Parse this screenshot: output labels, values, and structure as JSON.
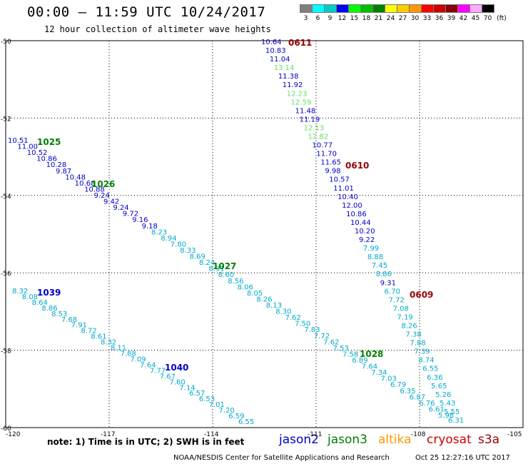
{
  "title": "00:00 – 11:59 UTC 10/24/2017",
  "subtitle": "12 hour collection of altimeter wave heights",
  "scale": {
    "labels": [
      "3",
      "6",
      "9",
      "12",
      "15",
      "18",
      "21",
      "24",
      "27",
      "30",
      "33",
      "36",
      "39",
      "42",
      "45",
      "70"
    ],
    "unit": "(ft)",
    "colors": [
      "#808080",
      "#00ffff",
      "#00cccc",
      "#0000ff",
      "#00ff00",
      "#00c000",
      "#008000",
      "#ffff00",
      "#ffcc00",
      "#ff9900",
      "#ff0000",
      "#cc0000",
      "#880000",
      "#ff00ff",
      "#ffaaff",
      "#000000"
    ]
  },
  "lat_labels": [
    "-50",
    "-52",
    "-54",
    "-56",
    "-58",
    "-60"
  ],
  "lon_labels": [
    "-120",
    "-117",
    "-114",
    "-111",
    "-108",
    "-105"
  ],
  "note": "note: 1) Time is in UTC; 2) SWH is in feet",
  "legend": [
    {
      "name": "jason2",
      "color": "#0000cc"
    },
    {
      "name": "jason3",
      "color": "#008000"
    },
    {
      "name": "altika",
      "color": "#ff9900"
    },
    {
      "name": "cryosat",
      "color": "#cc0000"
    },
    {
      "name": "s3a",
      "color": "#990000"
    }
  ],
  "footer_left": "NOAA/NESDIS Center for Satellite Applications and Research",
  "footer_right": "Oct 25 12:27:16 UTC 2017",
  "tracks": [
    {
      "id": "A",
      "satellite": "cryosat",
      "time_labels": [
        {
          "text": "0611",
          "color": "#990000"
        }
      ],
      "points": [
        {
          "v": "10.64",
          "c": "#0000cc"
        },
        {
          "v": "10.83",
          "c": "#0000cc"
        },
        {
          "v": "11.04",
          "c": "#0000cc"
        },
        {
          "v": "13.14",
          "c": "#66dd66"
        },
        {
          "v": "11.38",
          "c": "#0000cc"
        },
        {
          "v": "11.92",
          "c": "#0000cc"
        },
        {
          "v": "12.23",
          "c": "#66dd66"
        },
        {
          "v": "12.59",
          "c": "#66dd66"
        },
        {
          "v": "11.48",
          "c": "#0000cc"
        },
        {
          "v": "11.19",
          "c": "#0000cc"
        },
        {
          "v": "12.13",
          "c": "#66dd66"
        },
        {
          "v": "12.82",
          "c": "#66dd66"
        },
        {
          "v": "10.77",
          "c": "#0000cc"
        },
        {
          "v": "11.70",
          "c": "#0000cc"
        },
        {
          "v": "11.65",
          "c": "#0000cc"
        },
        {
          "v": "9.98",
          "c": "#0000cc"
        },
        {
          "v": "10.57",
          "c": "#0000cc"
        },
        {
          "v": "11.01",
          "c": "#0000cc"
        },
        {
          "v": "10.40",
          "c": "#0000cc"
        },
        {
          "v": "12.00",
          "c": "#0000cc"
        },
        {
          "v": "10.86",
          "c": "#0000cc"
        },
        {
          "v": "10.44",
          "c": "#0000cc"
        },
        {
          "v": "10.20",
          "c": "#0000cc"
        },
        {
          "v": "9.22",
          "c": "#0000cc"
        },
        {
          "v": "7.99",
          "c": "#00aacc"
        },
        {
          "v": "8.88",
          "c": "#00aacc"
        },
        {
          "v": "7.45",
          "c": "#00aacc"
        },
        {
          "v": "8.86",
          "c": "#00aacc"
        },
        {
          "v": "9.31",
          "c": "#0000cc"
        },
        {
          "v": "6.70",
          "c": "#00aacc"
        },
        {
          "v": "7.72",
          "c": "#00aacc"
        },
        {
          "v": "7.08",
          "c": "#00aacc"
        },
        {
          "v": "7.19",
          "c": "#00aacc"
        },
        {
          "v": "8.26",
          "c": "#00aacc"
        },
        {
          "v": "7.38",
          "c": "#00aacc"
        },
        {
          "v": "7.88",
          "c": "#00aacc"
        },
        {
          "v": "7.39",
          "c": "#00aacc"
        },
        {
          "v": "8.74",
          "c": "#00aacc"
        },
        {
          "v": "6.55",
          "c": "#00aacc"
        },
        {
          "v": "6.36",
          "c": "#00aacc"
        },
        {
          "v": "5.65",
          "c": "#00aacc"
        },
        {
          "v": "5.26",
          "c": "#00aacc"
        },
        {
          "v": "5.43",
          "c": "#00aacc"
        },
        {
          "v": "5.55",
          "c": "#00aacc"
        },
        {
          "v": "6.31",
          "c": "#00aacc"
        }
      ]
    },
    {
      "id": "B",
      "satellite": "jason3",
      "time_labels": [
        {
          "text": "1025",
          "color": "#008000"
        }
      ],
      "points": [
        {
          "v": "10.51",
          "c": "#0000cc"
        },
        {
          "v": "11.00",
          "c": "#0000cc"
        },
        {
          "v": "10.52",
          "c": "#0000cc"
        },
        {
          "v": "10.86",
          "c": "#0000cc"
        },
        {
          "v": "10.28",
          "c": "#0000cc"
        },
        {
          "v": "9.87",
          "c": "#0000cc"
        },
        {
          "v": "10.48",
          "c": "#0000cc"
        },
        {
          "v": "10.68",
          "c": "#0000cc"
        },
        {
          "v": "10.88",
          "c": "#0000cc"
        },
        {
          "v": "9.24",
          "c": "#0000cc"
        },
        {
          "v": "9.42",
          "c": "#0000cc"
        },
        {
          "v": "9.24",
          "c": "#0000cc"
        },
        {
          "v": "9.72",
          "c": "#0000cc"
        },
        {
          "v": "9.16",
          "c": "#0000cc"
        },
        {
          "v": "9.18",
          "c": "#0000cc"
        },
        {
          "v": "8.23",
          "c": "#00aacc"
        },
        {
          "v": "8.94",
          "c": "#00aacc"
        },
        {
          "v": "7.80",
          "c": "#00aacc"
        },
        {
          "v": "8.33",
          "c": "#00aacc"
        },
        {
          "v": "8.69",
          "c": "#00aacc"
        },
        {
          "v": "8.24",
          "c": "#00aacc"
        },
        {
          "v": "8.91",
          "c": "#00aacc"
        },
        {
          "v": "8.60",
          "c": "#00aacc"
        },
        {
          "v": "8.56",
          "c": "#00aacc"
        },
        {
          "v": "8.06",
          "c": "#00aacc"
        },
        {
          "v": "8.05",
          "c": "#00aacc"
        },
        {
          "v": "8.26",
          "c": "#00aacc"
        },
        {
          "v": "8.13",
          "c": "#00aacc"
        },
        {
          "v": "8.30",
          "c": "#00aacc"
        },
        {
          "v": "7.62",
          "c": "#00aacc"
        },
        {
          "v": "7.50",
          "c": "#00aacc"
        },
        {
          "v": "7.83",
          "c": "#00aacc"
        },
        {
          "v": "7.72",
          "c": "#00aacc"
        },
        {
          "v": "7.62",
          "c": "#00aacc"
        },
        {
          "v": "7.53",
          "c": "#00aacc"
        },
        {
          "v": "7.58",
          "c": "#00aacc"
        },
        {
          "v": "6.89",
          "c": "#00aacc"
        },
        {
          "v": "7.64",
          "c": "#00aacc"
        },
        {
          "v": "7.34",
          "c": "#00aacc"
        },
        {
          "v": "7.03",
          "c": "#00aacc"
        },
        {
          "v": "6.79",
          "c": "#00aacc"
        },
        {
          "v": "6.35",
          "c": "#00aacc"
        },
        {
          "v": "6.87",
          "c": "#00aacc"
        },
        {
          "v": "6.76",
          "c": "#00aacc"
        },
        {
          "v": "6.61",
          "c": "#00aacc"
        },
        {
          "v": "5.98",
          "c": "#00aacc"
        }
      ]
    },
    {
      "id": "C",
      "satellite": "jason2",
      "time_labels": [
        {
          "text": "1039",
          "color": "#0000cc"
        }
      ],
      "points": [
        {
          "v": "8.32",
          "c": "#00aacc"
        },
        {
          "v": "8.08",
          "c": "#00aacc"
        },
        {
          "v": "8.64",
          "c": "#00aacc"
        },
        {
          "v": "8.86",
          "c": "#00aacc"
        },
        {
          "v": "8.53",
          "c": "#00aacc"
        },
        {
          "v": "7.68",
          "c": "#00aacc"
        },
        {
          "v": "7.91",
          "c": "#00aacc"
        },
        {
          "v": "8.72",
          "c": "#00aacc"
        },
        {
          "v": "8.61",
          "c": "#00aacc"
        },
        {
          "v": "8.32",
          "c": "#00aacc"
        },
        {
          "v": "8.11",
          "c": "#00aacc"
        },
        {
          "v": "7.88",
          "c": "#00aacc"
        },
        {
          "v": "7.09",
          "c": "#00aacc"
        },
        {
          "v": "7.64",
          "c": "#00aacc"
        },
        {
          "v": "7.77",
          "c": "#00aacc"
        },
        {
          "v": "7.67",
          "c": "#00aacc"
        },
        {
          "v": "7.60",
          "c": "#00aacc"
        },
        {
          "v": "7.14",
          "c": "#00aacc"
        },
        {
          "v": "6.57",
          "c": "#00aacc"
        },
        {
          "v": "6.53",
          "c": "#00aacc"
        },
        {
          "v": "7.01",
          "c": "#00aacc"
        },
        {
          "v": "7.20",
          "c": "#00aacc"
        },
        {
          "v": "6.59",
          "c": "#00aacc"
        },
        {
          "v": "6.55",
          "c": "#00aacc"
        }
      ]
    }
  ],
  "time_labels": [
    {
      "text": "0611",
      "color": "#990000"
    },
    {
      "text": "0610",
      "color": "#990000"
    },
    {
      "text": "0609",
      "color": "#990000"
    },
    {
      "text": "1025",
      "color": "#008000"
    },
    {
      "text": "1026",
      "color": "#008000"
    },
    {
      "text": "1027",
      "color": "#008000"
    },
    {
      "text": "1028",
      "color": "#008000"
    },
    {
      "text": "1039",
      "color": "#0000cc"
    },
    {
      "text": "1040",
      "color": "#0000cc"
    }
  ]
}
